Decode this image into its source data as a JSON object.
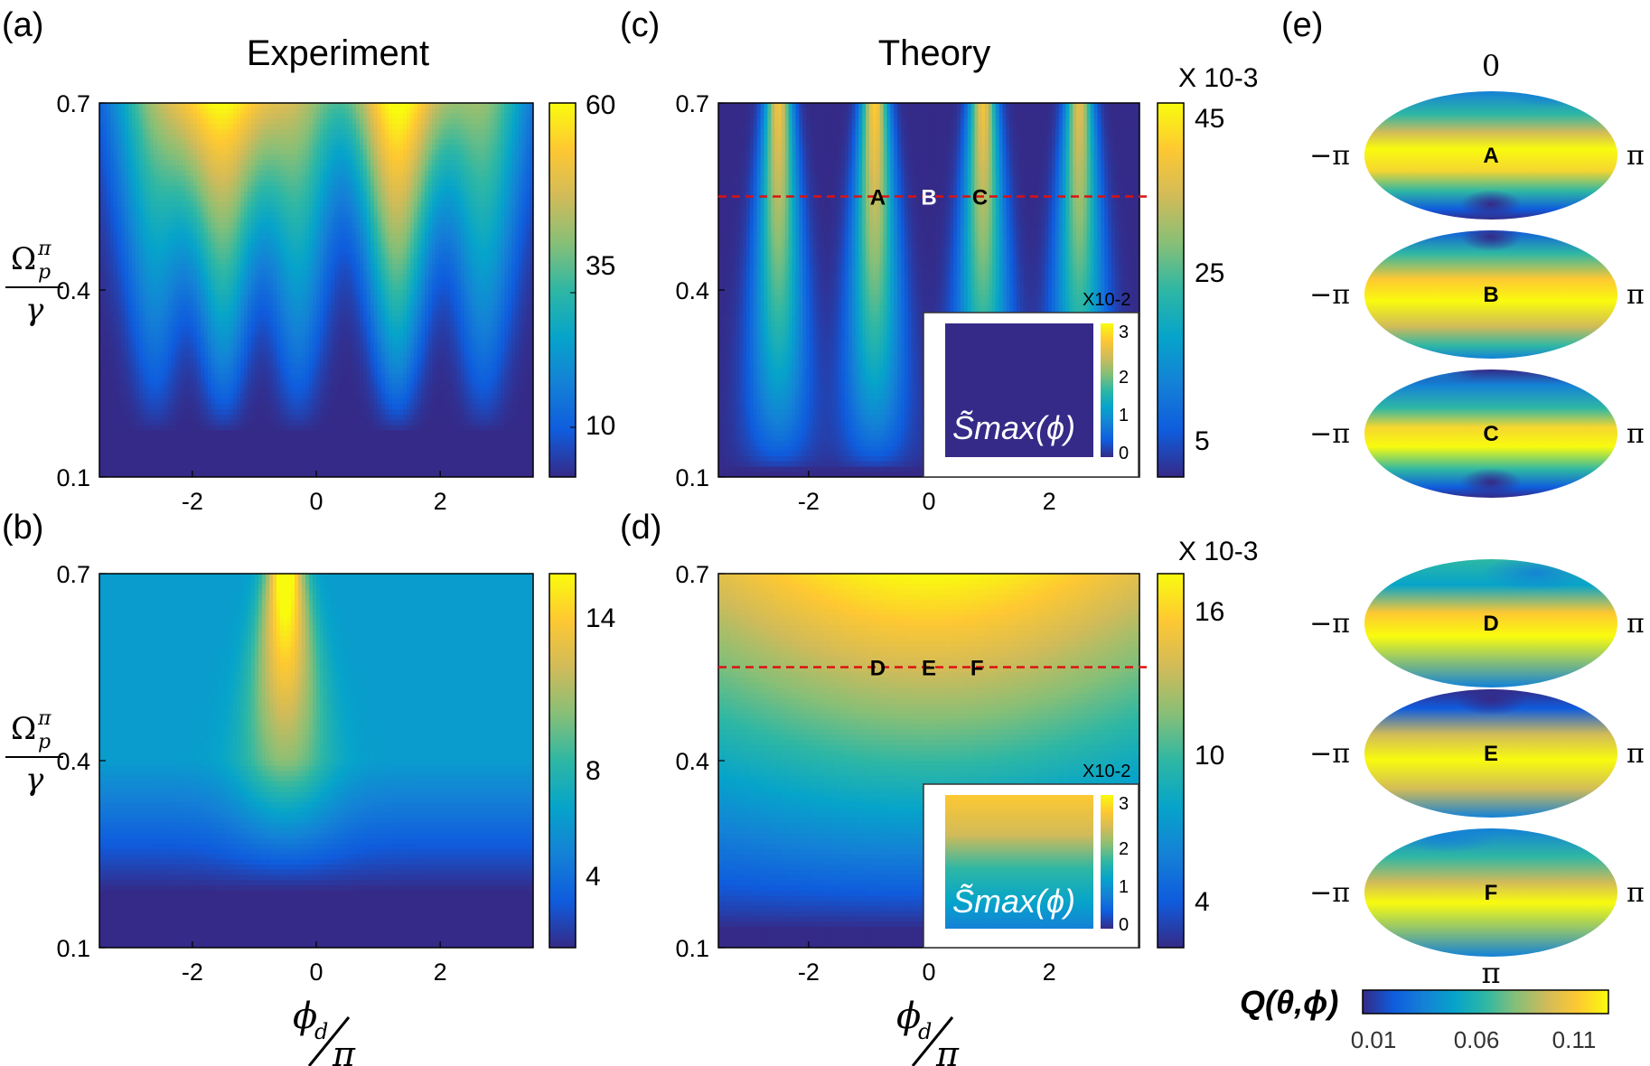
{
  "colors": {
    "parula": [
      "#352a87",
      "#0f5cdd",
      "#1481d6",
      "#06a4ca",
      "#2eb7a4",
      "#87bf77",
      "#d1bb59",
      "#fec832",
      "#f9fb0e"
    ],
    "guide_line": "#dd1111",
    "axis": "#000000"
  },
  "titles": {
    "experiment": "Experiment",
    "theory": "Theory"
  },
  "panel_labels": {
    "a": "(a)",
    "b": "(b)",
    "c": "(c)",
    "d": "(d)",
    "e": "(e)"
  },
  "axes": {
    "x_ticks": [
      "-2",
      "0",
      "2"
    ],
    "y_ticks": [
      "0.7",
      "0.4",
      "0.1"
    ],
    "y_label": {
      "numerator": "Ω",
      "superscript": "π",
      "subscript": "p",
      "denominator": "γ"
    },
    "x_label": {
      "numerator": "ϕ",
      "subscript": "d",
      "denominator": "π"
    }
  },
  "colorbars": {
    "a": {
      "ticks": [
        "60",
        "35",
        "10"
      ],
      "multiplier": ""
    },
    "b": {
      "ticks": [
        "14",
        "8",
        "4"
      ],
      "multiplier": ""
    },
    "c": {
      "ticks": [
        "45",
        "25",
        "5"
      ],
      "multiplier": "X 10-3"
    },
    "d": {
      "ticks": [
        "16",
        "10",
        "4"
      ],
      "multiplier": "X 10-3"
    }
  },
  "insets": {
    "c": {
      "label": "S̃max(ϕ)",
      "multiplier": "X10-2",
      "ticks": [
        "3",
        "2",
        "1",
        "0"
      ]
    },
    "d": {
      "label": "S̃max(ϕ)",
      "multiplier": "X10-2",
      "ticks": [
        "3",
        "2",
        "1",
        "0"
      ]
    }
  },
  "q_colorbar": {
    "label": "Q(θ,ϕ)",
    "ticks": [
      "0.01",
      "0.06",
      "0.11"
    ]
  },
  "sphere_labels": {
    "top": "0",
    "bottom": "π",
    "left": "−π",
    "right": "π"
  },
  "chart_data": [
    {
      "id": "a",
      "type": "heatmap",
      "title": "Experiment",
      "xlabel": "ϕd/π",
      "ylabel": "Ωpπ/γ",
      "xlim": [
        -3.5,
        3.5
      ],
      "ylim": [
        0.1,
        0.7
      ],
      "clim": [
        5,
        62
      ],
      "description": "fringe peaks near x = -2.6, -1.5, -0.3, 1.3, 2.7; strongest at 1.3 and -1.5",
      "peaks_x": [
        -2.6,
        -1.5,
        -0.3,
        1.3,
        2.7
      ],
      "peak_max": [
        38,
        55,
        42,
        62,
        40
      ]
    },
    {
      "id": "b",
      "type": "heatmap",
      "xlabel": "ϕd/π",
      "ylabel": "Ωpπ/γ",
      "xlim": [
        -3.5,
        3.5
      ],
      "ylim": [
        0.1,
        0.7
      ],
      "clim": [
        2,
        15
      ],
      "description": "single bright lobe centered near x = -0.5 at top",
      "peaks_x": [
        -0.5
      ],
      "peak_max": [
        15
      ]
    },
    {
      "id": "c",
      "type": "heatmap",
      "title": "Theory",
      "xlabel": "ϕd/π",
      "ylabel": "Ωpπ/γ",
      "xlim": [
        -3.5,
        3.5
      ],
      "ylim": [
        0.1,
        0.7
      ],
      "clim": [
        2,
        47
      ],
      "peaks_x": [
        -2.5,
        -0.9,
        0.9,
        2.5
      ],
      "peak_max": [
        40,
        42,
        40,
        38
      ],
      "guide_y": 0.55,
      "markers": [
        {
          "label": "A",
          "x": -0.85,
          "y": 0.55
        },
        {
          "label": "B",
          "x": 0.0,
          "y": 0.55
        },
        {
          "label": "C",
          "x": 0.85,
          "y": 0.55
        }
      ]
    },
    {
      "id": "d",
      "type": "heatmap",
      "xlabel": "ϕd/π",
      "ylabel": "Ωpπ/γ",
      "xlim": [
        -3.5,
        3.5
      ],
      "ylim": [
        0.1,
        0.7
      ],
      "clim": [
        2,
        17
      ],
      "description": "smooth dome, maximum at top center",
      "guide_y": 0.55,
      "markers": [
        {
          "label": "D",
          "x": -0.85,
          "y": 0.55
        },
        {
          "label": "E",
          "x": 0.0,
          "y": 0.55
        },
        {
          "label": "F",
          "x": 0.8,
          "y": 0.55
        }
      ]
    }
  ],
  "spheres": [
    "A",
    "B",
    "C",
    "D",
    "E",
    "F"
  ]
}
